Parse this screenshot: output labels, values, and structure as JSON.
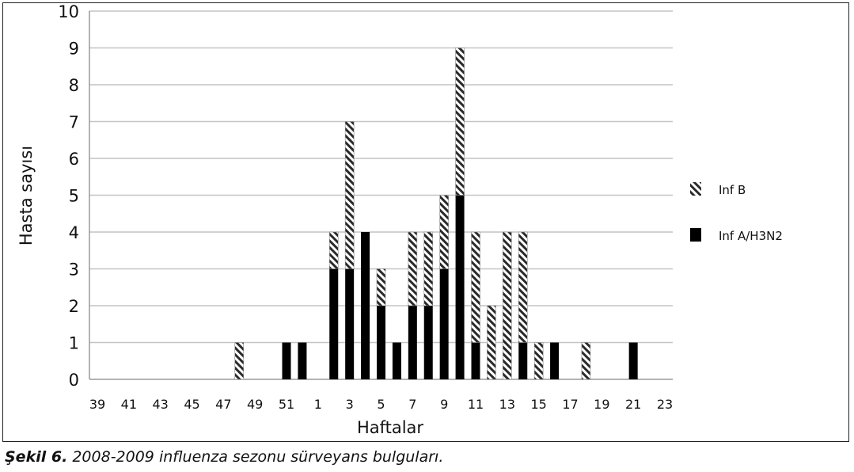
{
  "chart_data": {
    "type": "bar",
    "stacked": true,
    "xlabel": "Haftalar",
    "ylabel": "Hasta sayısı",
    "ylim": [
      0,
      10
    ],
    "yticks": [
      0,
      1,
      2,
      3,
      4,
      5,
      6,
      7,
      8,
      9,
      10
    ],
    "grid": true,
    "legend_position": "right",
    "categories": [
      "39",
      "40",
      "41",
      "42",
      "43",
      "44",
      "45",
      "46",
      "47",
      "48",
      "49",
      "50",
      "51",
      "52",
      "1",
      "2",
      "3",
      "4",
      "5",
      "6",
      "7",
      "8",
      "9",
      "10",
      "11",
      "12",
      "13",
      "14",
      "15",
      "16",
      "17",
      "18",
      "19",
      "20",
      "21",
      "22",
      "23"
    ],
    "xtick_labels": [
      "39",
      "41",
      "43",
      "45",
      "47",
      "49",
      "51",
      "1",
      "3",
      "5",
      "7",
      "9",
      "11",
      "13",
      "15",
      "17",
      "19",
      "21",
      "23"
    ],
    "series": [
      {
        "name": "Inf A/H3N2",
        "color": "#000000",
        "pattern": "solid",
        "values": [
          0,
          0,
          0,
          0,
          0,
          0,
          0,
          0,
          0,
          0,
          0,
          0,
          1,
          1,
          0,
          3,
          3,
          4,
          2,
          1,
          2,
          2,
          3,
          5,
          1,
          0,
          0,
          1,
          0,
          1,
          0,
          0,
          0,
          0,
          1,
          0,
          0
        ]
      },
      {
        "name": "Inf B",
        "color": "#333333",
        "pattern": "diagonal-hatch",
        "values": [
          0,
          0,
          0,
          0,
          0,
          0,
          0,
          0,
          0,
          1,
          0,
          0,
          0,
          0,
          0,
          1,
          4,
          0,
          1,
          0,
          2,
          2,
          2,
          4,
          3,
          2,
          4,
          3,
          1,
          0,
          0,
          1,
          0,
          0,
          0,
          0,
          0
        ]
      }
    ]
  },
  "caption": {
    "label": "Şekil 6.",
    "text": " 2008-2009 influenza sezonu sürveyans bulguları."
  }
}
